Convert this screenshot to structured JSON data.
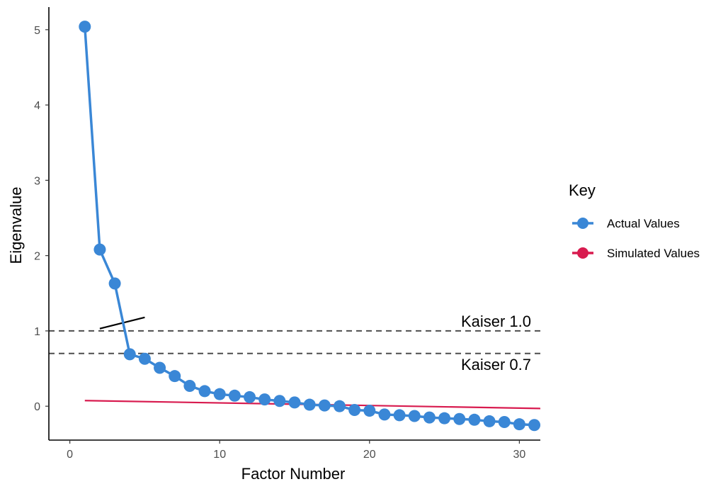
{
  "chart_data": {
    "type": "line",
    "xlabel": "Factor Number",
    "ylabel": "Eigenvalue",
    "xlim": [
      -1.4,
      31.4
    ],
    "ylim": [
      -0.45,
      5.3
    ],
    "x_ticks": [
      0,
      10,
      20,
      30
    ],
    "x_tick_labels": [
      "0",
      "10",
      "20",
      "30"
    ],
    "y_ticks": [
      0,
      1,
      2,
      3,
      4,
      5
    ],
    "y_tick_labels": [
      "0",
      "1",
      "2",
      "3",
      "4",
      "5"
    ],
    "grid": false,
    "legend": {
      "title": "Key",
      "placement": "right",
      "entries": [
        "Actual Values",
        "Simulated Values"
      ]
    },
    "series": [
      {
        "name": "Actual Values",
        "color": "#3a87d6",
        "markers": true,
        "x": [
          1,
          2,
          3,
          4,
          5,
          6,
          7,
          8,
          9,
          10,
          11,
          12,
          13,
          14,
          15,
          16,
          17,
          18,
          19,
          20,
          21,
          22,
          23,
          24,
          25,
          26,
          27,
          28,
          29,
          30,
          31
        ],
        "values": [
          5.04,
          2.08,
          1.63,
          0.69,
          0.63,
          0.51,
          0.4,
          0.27,
          0.2,
          0.16,
          0.14,
          0.12,
          0.09,
          0.07,
          0.05,
          0.02,
          0.01,
          0.0,
          -0.05,
          -0.06,
          -0.11,
          -0.12,
          -0.13,
          -0.15,
          -0.16,
          -0.17,
          -0.18,
          -0.2,
          -0.21,
          -0.24,
          -0.25
        ]
      },
      {
        "name": "Simulated Values",
        "color": "#d81b4f",
        "markers": false,
        "x": [
          1,
          31.4
        ],
        "values": [
          0.075,
          -0.03
        ]
      }
    ],
    "reference_lines": [
      {
        "y": 1.0,
        "label": "Kaiser 1.0",
        "style": "dashed",
        "color": "#4d4d4d"
      },
      {
        "y": 0.7,
        "label": "Kaiser 0.7",
        "style": "dashed",
        "color": "#4d4d4d"
      }
    ],
    "annotation_segment": {
      "x": [
        2,
        5
      ],
      "values": [
        1.03,
        1.18
      ],
      "color": "#000000"
    }
  }
}
